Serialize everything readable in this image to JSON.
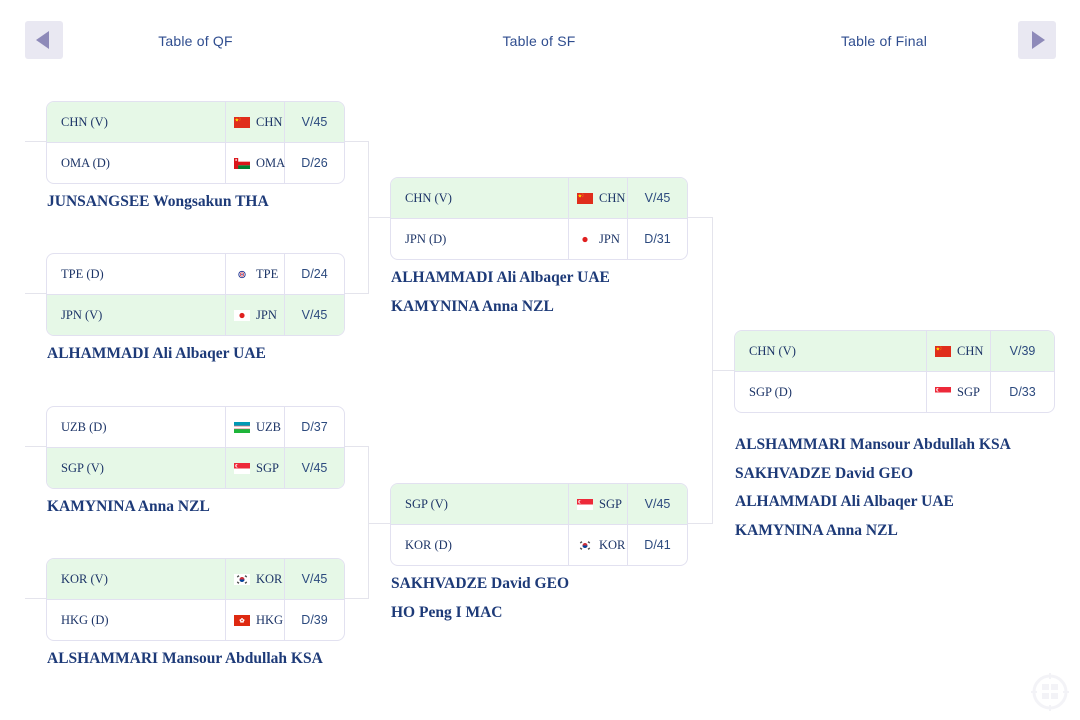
{
  "header": {
    "prev_label": "previous-round",
    "next_label": "next-round",
    "tabs": [
      {
        "label": "Table of QF"
      },
      {
        "label": "Table of SF"
      },
      {
        "label": "Table of Final"
      }
    ]
  },
  "colors": {
    "winner_row_bg": "#e6f8e7",
    "card_border": "#e2e1f0",
    "entry_text": "#1c3467",
    "score_text": "#2c4a7e",
    "official_text": "#1d3a78",
    "header_text": "#2f4d8f",
    "connector": "#e4e4ec",
    "nav_button_bg": "#e9e8f2",
    "nav_arrow": "#8e8ab9"
  },
  "bracket": {
    "rounds": [
      {
        "name": "QF",
        "matches": [
          {
            "rows": [
              {
                "entry": "CHN (V)",
                "flag": "CHN",
                "code": "CHN",
                "score": "V/45",
                "winner": true
              },
              {
                "entry": "OMA (D)",
                "flag": "OMA",
                "code": "OMA",
                "score": "D/26",
                "winner": false
              }
            ],
            "officials": [
              "JUNSANGSEE Wongsakun THA"
            ]
          },
          {
            "rows": [
              {
                "entry": "TPE (D)",
                "flag": "TPE",
                "code": "TPE",
                "score": "D/24",
                "winner": false
              },
              {
                "entry": "JPN (V)",
                "flag": "JPN",
                "code": "JPN",
                "score": "V/45",
                "winner": true
              }
            ],
            "officials": [
              "ALHAMMADI Ali Albaqer UAE"
            ]
          },
          {
            "rows": [
              {
                "entry": "UZB (D)",
                "flag": "UZB",
                "code": "UZB",
                "score": "D/37",
                "winner": false
              },
              {
                "entry": "SGP (V)",
                "flag": "SGP",
                "code": "SGP",
                "score": "V/45",
                "winner": true
              }
            ],
            "officials": [
              "KAMYNINA Anna NZL"
            ]
          },
          {
            "rows": [
              {
                "entry": "KOR (V)",
                "flag": "KOR",
                "code": "KOR",
                "score": "V/45",
                "winner": true
              },
              {
                "entry": "HKG (D)",
                "flag": "HKG",
                "code": "HKG",
                "score": "D/39",
                "winner": false
              }
            ],
            "officials": [
              "ALSHAMMARI Mansour Abdullah KSA"
            ]
          }
        ]
      },
      {
        "name": "SF",
        "matches": [
          {
            "rows": [
              {
                "entry": "CHN (V)",
                "flag": "CHN",
                "code": "CHN",
                "score": "V/45",
                "winner": true
              },
              {
                "entry": "JPN (D)",
                "flag": "JPN",
                "code": "JPN",
                "score": "D/31",
                "winner": false
              }
            ],
            "officials": [
              "ALHAMMADI Ali Albaqer UAE",
              "KAMYNINA Anna NZL"
            ]
          },
          {
            "rows": [
              {
                "entry": "SGP (V)",
                "flag": "SGP",
                "code": "SGP",
                "score": "V/45",
                "winner": true
              },
              {
                "entry": "KOR (D)",
                "flag": "KOR",
                "code": "KOR",
                "score": "D/41",
                "winner": false
              }
            ],
            "officials": [
              "SAKHVADZE David GEO",
              "HO Peng I MAC"
            ]
          }
        ]
      },
      {
        "name": "Final",
        "matches": [
          {
            "rows": [
              {
                "entry": "CHN (V)",
                "flag": "CHN",
                "code": "CHN",
                "score": "V/39",
                "winner": true
              },
              {
                "entry": "SGP (D)",
                "flag": "SGP",
                "code": "SGP",
                "score": "D/33",
                "winner": false
              }
            ],
            "officials": [
              "ALSHAMMARI Mansour Abdullah KSA",
              "SAKHVADZE David GEO",
              "ALHAMMADI Ali Albaqer UAE",
              "KAMYNINA Anna NZL"
            ]
          }
        ]
      }
    ]
  }
}
